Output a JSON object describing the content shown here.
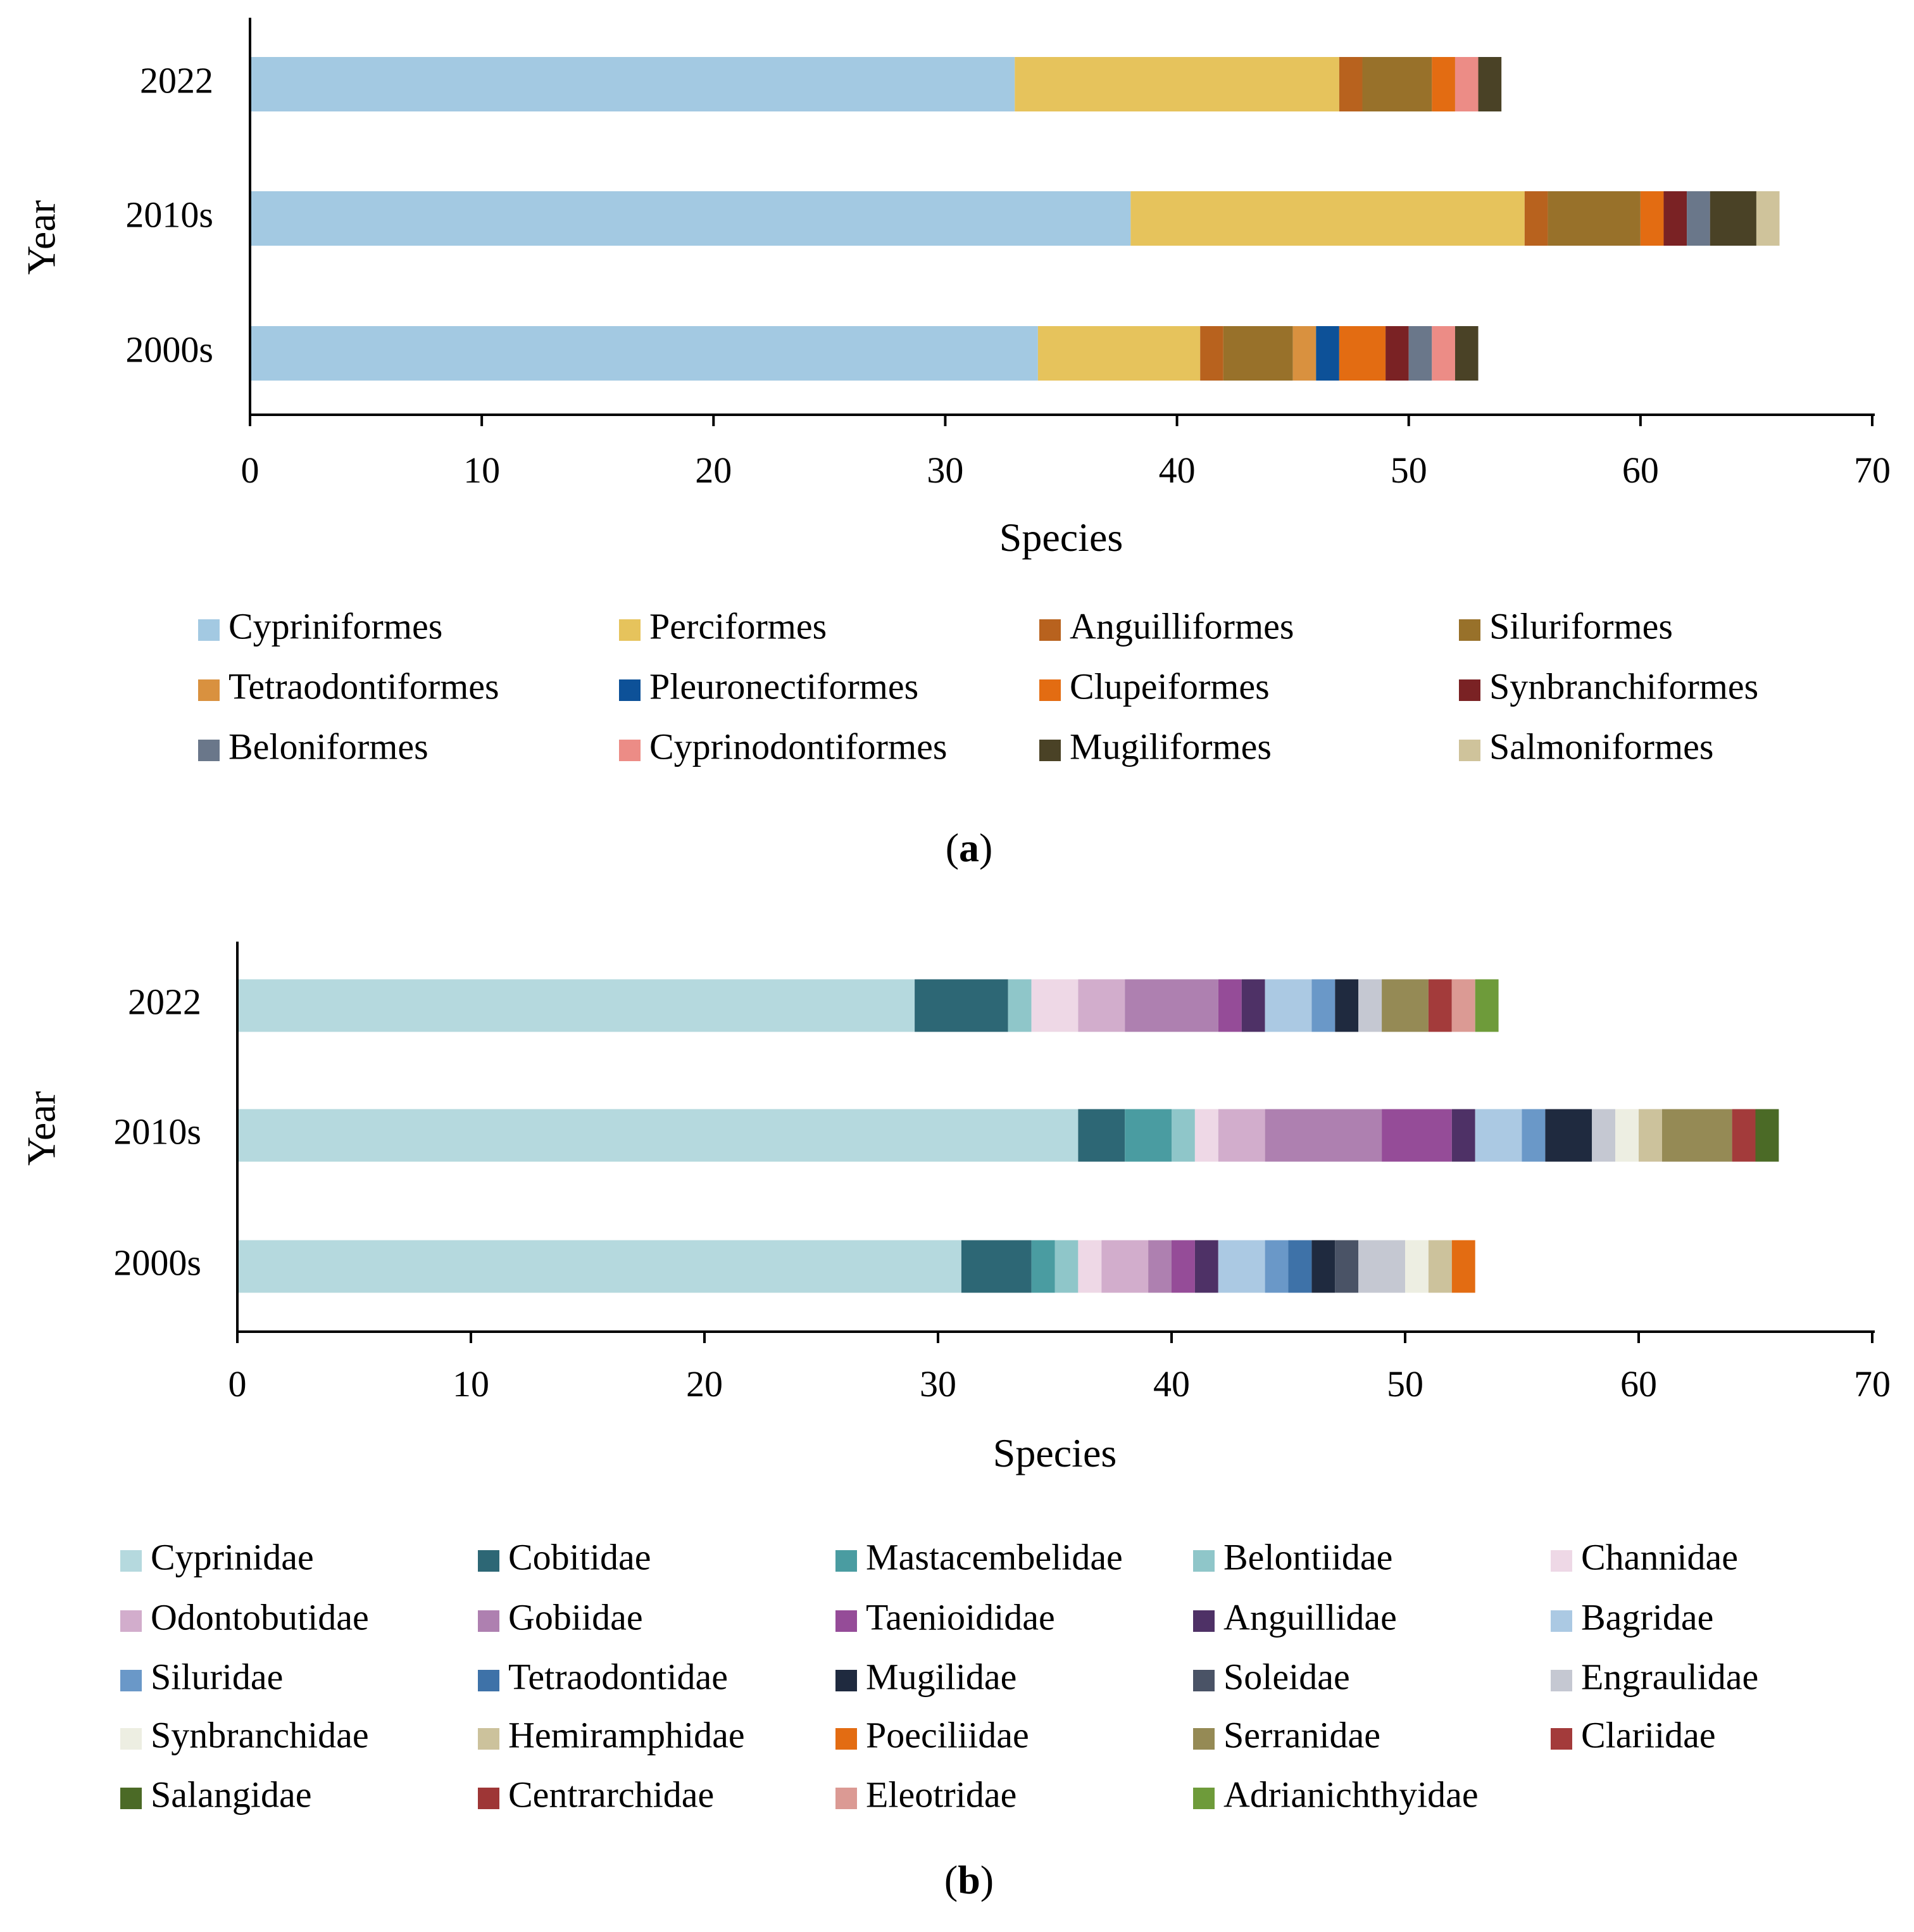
{
  "chart_data": [
    {
      "type": "bar",
      "orientation": "horizontal",
      "stacked": true,
      "panel_prefix": "(",
      "panel_letter": "a",
      "panel_suffix": ")",
      "xlabel": "Species",
      "ylabel": "Year",
      "xlim": [
        0,
        70
      ],
      "xticks": [
        0,
        10,
        20,
        30,
        40,
        50,
        60,
        70
      ],
      "categories": [
        "2022",
        "2010s",
        "2000s"
      ],
      "series": [
        {
          "name": "Cypriniformes",
          "color": "#A3C9E2",
          "values": [
            33,
            38,
            34
          ]
        },
        {
          "name": "Perciformes",
          "color": "#E6C35C",
          "values": [
            14,
            17,
            7
          ]
        },
        {
          "name": "Anguilliformes",
          "color": "#B8621E",
          "values": [
            1,
            1,
            1
          ]
        },
        {
          "name": "Siluriformes",
          "color": "#98712A",
          "values": [
            3,
            4,
            3
          ]
        },
        {
          "name": "Tetraodontiformes",
          "color": "#D9913F",
          "values": [
            0,
            0,
            1
          ]
        },
        {
          "name": "Pleuronectiformes",
          "color": "#0D5198",
          "values": [
            0,
            0,
            1
          ]
        },
        {
          "name": "Clupeiformes",
          "color": "#E36C12",
          "values": [
            1,
            1,
            2
          ]
        },
        {
          "name": "Synbranchiformes",
          "color": "#7A2224",
          "values": [
            0,
            1,
            1
          ]
        },
        {
          "name": "Beloniformes",
          "color": "#6A778A",
          "values": [
            0,
            1,
            1
          ]
        },
        {
          "name": "Cyprinodontiformes",
          "color": "#EC8C86",
          "values": [
            1,
            0,
            1
          ]
        },
        {
          "name": "Mugiliformes",
          "color": "#4A4226",
          "values": [
            1,
            2,
            1
          ]
        },
        {
          "name": "Salmoniformes",
          "color": "#CFC39B",
          "values": [
            0,
            1,
            0
          ]
        }
      ]
    },
    {
      "type": "bar",
      "orientation": "horizontal",
      "stacked": true,
      "panel_prefix": "(",
      "panel_letter": "b",
      "panel_suffix": ")",
      "xlabel": "Species",
      "ylabel": "Year",
      "xlim": [
        0,
        70
      ],
      "xticks": [
        0,
        10,
        20,
        30,
        40,
        50,
        60,
        70
      ],
      "categories": [
        "2022",
        "2010s",
        "2000s"
      ],
      "series": [
        {
          "name": "Cyprinidae",
          "color": "#B5D9DE",
          "values": [
            29,
            36,
            31
          ]
        },
        {
          "name": "Cobitidae",
          "color": "#2D6775",
          "values": [
            4,
            2,
            3
          ]
        },
        {
          "name": "Mastacembelidae",
          "color": "#4A9CA1",
          "values": [
            0,
            2,
            1
          ]
        },
        {
          "name": "Belontiidae",
          "color": "#8FC6C9",
          "values": [
            1,
            1,
            1
          ]
        },
        {
          "name": "Channidae",
          "color": "#EED8E6",
          "values": [
            2,
            1,
            1
          ]
        },
        {
          "name": "Odontobutidae",
          "color": "#D2ADCC",
          "values": [
            2,
            2,
            2
          ]
        },
        {
          "name": "Gobiidae",
          "color": "#AE80B0",
          "values": [
            4,
            5,
            1
          ]
        },
        {
          "name": "Taenioididae",
          "color": "#954C98",
          "values": [
            1,
            3,
            1
          ]
        },
        {
          "name": "Anguillidae",
          "color": "#4E3166",
          "values": [
            1,
            1,
            1
          ]
        },
        {
          "name": "Bagridae",
          "color": "#ABC9E3",
          "values": [
            2,
            2,
            2
          ]
        },
        {
          "name": "Siluridae",
          "color": "#6A98C8",
          "values": [
            1,
            1,
            1
          ]
        },
        {
          "name": "Tetraodontidae",
          "color": "#3E72A8",
          "values": [
            0,
            0,
            1
          ]
        },
        {
          "name": "Mugilidae",
          "color": "#1F2A3F",
          "values": [
            1,
            2,
            1
          ]
        },
        {
          "name": "Soleidae",
          "color": "#4A5366",
          "values": [
            0,
            0,
            1
          ]
        },
        {
          "name": "Engraulidae",
          "color": "#C5C8D2",
          "values": [
            1,
            1,
            2
          ]
        },
        {
          "name": "Synbranchidae",
          "color": "#EDEEE2",
          "values": [
            0,
            1,
            1
          ]
        },
        {
          "name": "Hemiramphidae",
          "color": "#CCC29C",
          "values": [
            0,
            1,
            1
          ]
        },
        {
          "name": "Poeciliidae",
          "color": "#E36C12",
          "values": [
            0,
            0,
            1
          ]
        },
        {
          "name": "Serranidae",
          "color": "#958A55",
          "values": [
            2,
            3,
            0
          ]
        },
        {
          "name": "Clariidae",
          "color": "#A33B3B",
          "values": [
            1,
            1,
            0
          ]
        },
        {
          "name": "Salangidae",
          "color": "#4B6A26",
          "values": [
            0,
            1,
            0
          ]
        },
        {
          "name": "Centrarchidae",
          "color": "#9E3636",
          "values": [
            0,
            0,
            0
          ]
        },
        {
          "name": "Eleotridae",
          "color": "#DB9A94",
          "values": [
            1,
            0,
            0
          ]
        },
        {
          "name": "Adrianichthyidae",
          "color": "#6E9B3A",
          "values": [
            1,
            0,
            0
          ]
        }
      ]
    }
  ]
}
